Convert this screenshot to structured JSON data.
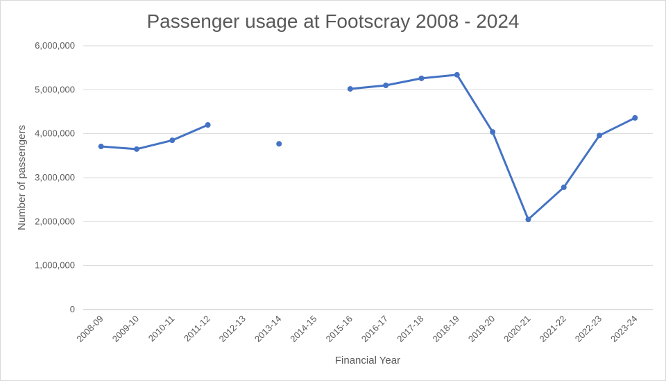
{
  "chart_data": {
    "type": "line",
    "title": "Passenger usage at Footscray 2008 - 2024",
    "xlabel": "Financial Year",
    "ylabel": "Number of passengers",
    "ylim": [
      0,
      6000000
    ],
    "yticks": [
      0,
      1000000,
      2000000,
      3000000,
      4000000,
      5000000,
      6000000
    ],
    "ytick_labels": [
      "0",
      "1,000,000",
      "2,000,000",
      "3,000,000",
      "4,000,000",
      "5,000,000",
      "6,000,000"
    ],
    "grid": true,
    "categories": [
      "2008-09",
      "2009-10",
      "2010-11",
      "2011-12",
      "2012-13",
      "2013-14",
      "2014-15",
      "2015-16",
      "2016-17",
      "2017-18",
      "2018-19",
      "2019-20",
      "2020-21",
      "2021-22",
      "2022-23",
      "2023-24"
    ],
    "values": [
      3710000,
      3650000,
      3850000,
      4200000,
      null,
      3770000,
      null,
      5020000,
      5100000,
      5260000,
      5340000,
      4040000,
      2050000,
      2780000,
      3960000,
      4360000
    ],
    "color": "#4472c4"
  }
}
